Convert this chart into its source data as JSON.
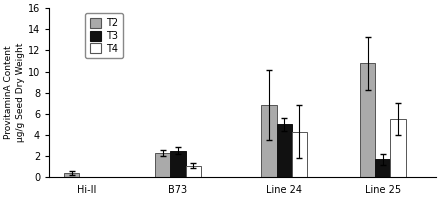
{
  "groups": [
    "Hi-II",
    "B73",
    "Line 24",
    "Line 25"
  ],
  "series": [
    "T2",
    "T3",
    "T4"
  ],
  "bar_colors": [
    "#aaaaaa",
    "#111111",
    "#ffffff"
  ],
  "bar_edgecolors": [
    "#555555",
    "#111111",
    "#555555"
  ],
  "values": {
    "T2": [
      0.4,
      2.3,
      6.8,
      10.8
    ],
    "T3": [
      null,
      2.5,
      5.0,
      1.7
    ],
    "T4": [
      null,
      1.1,
      4.3,
      5.5
    ]
  },
  "errors": {
    "T2": [
      0.15,
      0.25,
      3.3,
      2.5
    ],
    "T3": [
      null,
      0.35,
      0.6,
      0.5
    ],
    "T4": [
      null,
      0.2,
      2.5,
      1.5
    ]
  },
  "ylabel_line1": "ProvitaminA Content",
  "ylabel_line2": "μg/g Seed Dry Weight",
  "ylim": [
    0,
    16
  ],
  "yticks": [
    0,
    2,
    4,
    6,
    8,
    10,
    12,
    14,
    16
  ],
  "legend_labels": [
    "T2",
    "T3",
    "T4"
  ],
  "bar_width": 0.2,
  "figsize": [
    4.4,
    1.99
  ],
  "dpi": 100
}
